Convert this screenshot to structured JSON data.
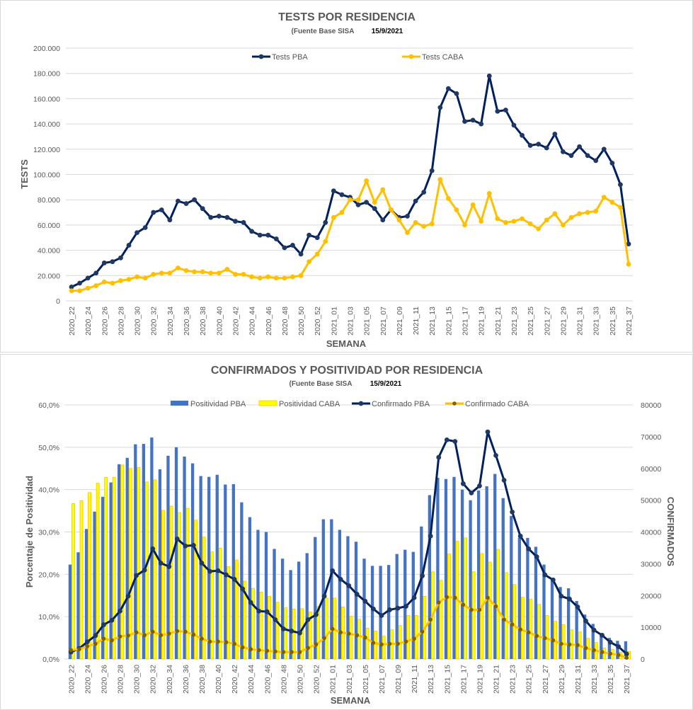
{
  "chart_data": [
    {
      "type": "line",
      "title": "TESTS POR RESIDENCIA",
      "subtitle": "(Fuente Base SISA",
      "date": "15/9/2021",
      "xlabel": "SEMANA",
      "ylabel": "TESTS",
      "ylim": [
        0,
        200000
      ],
      "yticks": [
        "0",
        "20.000",
        "40.000",
        "60.000",
        "80.000",
        "100.000",
        "120.000",
        "140.000",
        "160.000",
        "180.000",
        "200.000"
      ],
      "grid": true,
      "legend_position": "top",
      "categories": [
        "2020_22",
        "2020_23",
        "2020_24",
        "2020_25",
        "2020_26",
        "2020_27",
        "2020_28",
        "2020_29",
        "2020_30",
        "2020_31",
        "2020_32",
        "2020_33",
        "2020_34",
        "2020_35",
        "2020_36",
        "2020_37",
        "2020_38",
        "2020_39",
        "2020_40",
        "2020_41",
        "2020_42",
        "2020_43",
        "2020_44",
        "2020_45",
        "2020_46",
        "2020_47",
        "2020_48",
        "2020_49",
        "2020_50",
        "2020_51",
        "2020_52",
        "2020_53",
        "2021_01",
        "2021_02",
        "2021_03",
        "2021_04",
        "2021_05",
        "2021_06",
        "2021_07",
        "2021_08",
        "2021_09",
        "2021_10",
        "2021_11",
        "2021_12",
        "2021_13",
        "2021_14",
        "2021_15",
        "2021_16",
        "2021_17",
        "2021_18",
        "2021_19",
        "2021_20",
        "2021_21",
        "2021_22",
        "2021_23",
        "2021_24",
        "2021_25",
        "2021_26",
        "2021_27",
        "2021_28",
        "2021_29",
        "2021_30",
        "2021_31",
        "2021_32",
        "2021_33",
        "2021_34",
        "2021_35",
        "2021_36",
        "2021_37"
      ],
      "series": [
        {
          "name": "Tests PBA",
          "color": "#002060",
          "values": [
            11000,
            14000,
            18000,
            22000,
            30000,
            31000,
            34000,
            44000,
            54000,
            58000,
            70000,
            72000,
            64000,
            79000,
            77000,
            80000,
            73000,
            66000,
            67000,
            66000,
            63000,
            62000,
            55000,
            52000,
            52000,
            49000,
            42000,
            44000,
            37000,
            52000,
            50000,
            62000,
            87000,
            84000,
            82000,
            76000,
            78000,
            73000,
            64000,
            72000,
            66000,
            67000,
            79000,
            86000,
            103000,
            153000,
            168000,
            164000,
            142000,
            143000,
            140000,
            178000,
            150000,
            151000,
            139000,
            131000,
            123000,
            124000,
            121000,
            132000,
            118000,
            115000,
            122000,
            115000,
            111000,
            120000,
            109000,
            92000,
            45000
          ]
        },
        {
          "name": "Tests CABA",
          "color": "#FFC000",
          "values": [
            8000,
            8000,
            10000,
            12000,
            15000,
            14000,
            16000,
            17000,
            19000,
            18000,
            21000,
            22000,
            22000,
            26000,
            24000,
            23000,
            23000,
            22000,
            22000,
            25000,
            21000,
            21000,
            19000,
            18000,
            19000,
            18000,
            18000,
            19000,
            20000,
            31000,
            37000,
            47000,
            66000,
            70000,
            80000,
            80000,
            95000,
            78000,
            88000,
            72000,
            64000,
            54000,
            62000,
            59000,
            61000,
            96000,
            81000,
            72000,
            60000,
            76000,
            63000,
            85000,
            65000,
            62000,
            63000,
            65000,
            61000,
            57000,
            64000,
            69000,
            60000,
            66000,
            69000,
            70000,
            71000,
            82000,
            78000,
            74000,
            29000
          ]
        }
      ]
    },
    {
      "type": "bar",
      "title": "CONFIRMADOS Y POSITIVIDAD POR RESIDENCIA",
      "subtitle": "(Fuente Base SISA",
      "date": "15/9/2021",
      "xlabel": "SEMANA",
      "ylabel": "Porcentaje de Positividad",
      "y2label": "CONFIRMADOS",
      "ylim": [
        0,
        60
      ],
      "y2lim": [
        0,
        80000
      ],
      "yticks": [
        "0,0%",
        "10,0%",
        "20,0%",
        "30,0%",
        "40,0%",
        "50,0%",
        "60,0%"
      ],
      "y2ticks": [
        "0",
        "10000",
        "20000",
        "30000",
        "40000",
        "50000",
        "60000",
        "70000",
        "80000"
      ],
      "grid": true,
      "legend_position": "top",
      "series": [
        {
          "name": "Positividad PBA",
          "kind": "bar",
          "axis": "left",
          "color": "#4472C4",
          "values": [
            22.3,
            25.2,
            30.7,
            34.8,
            38.3,
            41.7,
            46,
            47.5,
            50.7,
            50.8,
            52.3,
            44.8,
            48,
            50,
            47.8,
            46.2,
            43.2,
            43,
            43.5,
            41.2,
            41.3,
            37,
            33.5,
            30.5,
            30,
            26,
            23.7,
            21,
            23,
            25,
            28.8,
            33,
            33,
            30.5,
            29,
            27.7,
            23.7,
            22,
            22,
            22.2,
            24.8,
            25.8,
            25.3,
            31.3,
            38.7,
            42.8,
            42.5,
            43,
            40,
            37.5,
            39.8,
            40.8,
            43.7,
            38,
            33.8,
            28.6,
            28.6,
            26.5,
            22.3,
            18.5,
            17,
            16.7,
            13.7,
            10.5,
            8.3,
            6.1,
            5,
            4.3,
            4.2
          ]
        },
        {
          "name": "Positividad CABA",
          "kind": "bar",
          "axis": "left",
          "color": "#FFFF00",
          "values": [
            36.7,
            37.4,
            39.3,
            41.5,
            42.9,
            42.9,
            45.8,
            45,
            45.2,
            41.8,
            42.3,
            35.1,
            36.1,
            34.6,
            35.6,
            32.8,
            28.8,
            25.3,
            26.2,
            21.8,
            23.4,
            18.4,
            16.7,
            15.8,
            14.8,
            13.4,
            12.1,
            11.8,
            11.9,
            11.1,
            12.4,
            14.4,
            14.4,
            12.3,
            10.1,
            9.4,
            7.3,
            6.6,
            5.4,
            6.9,
            7.9,
            10.3,
            10.3,
            14.8,
            20.6,
            18.6,
            24.8,
            27.8,
            28.6,
            20.6,
            24.9,
            22.9,
            25.9,
            20.4,
            17.6,
            14.6,
            14.1,
            12.9,
            10.3,
            8.9,
            8.1,
            6.9,
            6.4,
            4.9,
            3.9,
            2.6,
            2.3,
            1.6,
            1.8
          ]
        },
        {
          "name": "Confirmado PBA",
          "kind": "line",
          "axis": "right",
          "color": "#002060",
          "values": [
            2200,
            3300,
            5400,
            7400,
            10800,
            12200,
            15100,
            19800,
            26300,
            28000,
            34700,
            30200,
            29100,
            37800,
            35600,
            35800,
            30200,
            27600,
            27800,
            26500,
            25100,
            22100,
            17800,
            15100,
            14900,
            12400,
            9500,
            8800,
            8200,
            12400,
            14000,
            19800,
            27800,
            25100,
            23100,
            20400,
            18200,
            15800,
            13700,
            15500,
            16000,
            16600,
            19300,
            26200,
            38700,
            63500,
            69000,
            68500,
            55200,
            52300,
            54500,
            71500,
            64100,
            56300,
            46300,
            38700,
            34700,
            32200,
            26500,
            24900,
            19800,
            18900,
            16400,
            12000,
            9100,
            7500,
            5300,
            3900,
            1600
          ]
        },
        {
          "name": "Confirmado CABA",
          "kind": "line",
          "axis": "right",
          "color": "#FFC000",
          "marker_color": "#7F6000",
          "values": [
            2800,
            3100,
            4000,
            4800,
            6400,
            5900,
            7100,
            7400,
            8400,
            7500,
            8600,
            7500,
            8000,
            8800,
            8600,
            7700,
            6400,
            5500,
            5500,
            5300,
            4800,
            3700,
            3100,
            2800,
            2600,
            2400,
            2200,
            2200,
            2200,
            3500,
            4600,
            6600,
            9500,
            8400,
            8000,
            7500,
            6800,
            5100,
            4600,
            4800,
            4800,
            5500,
            6400,
            8600,
            12400,
            17800,
            19500,
            19300,
            17100,
            15500,
            15500,
            19300,
            16600,
            12400,
            10900,
            9300,
            8400,
            7300,
            6600,
            5900,
            4800,
            4600,
            4400,
            3500,
            2800,
            2200,
            1700,
            1300,
            400
          ]
        }
      ]
    }
  ]
}
